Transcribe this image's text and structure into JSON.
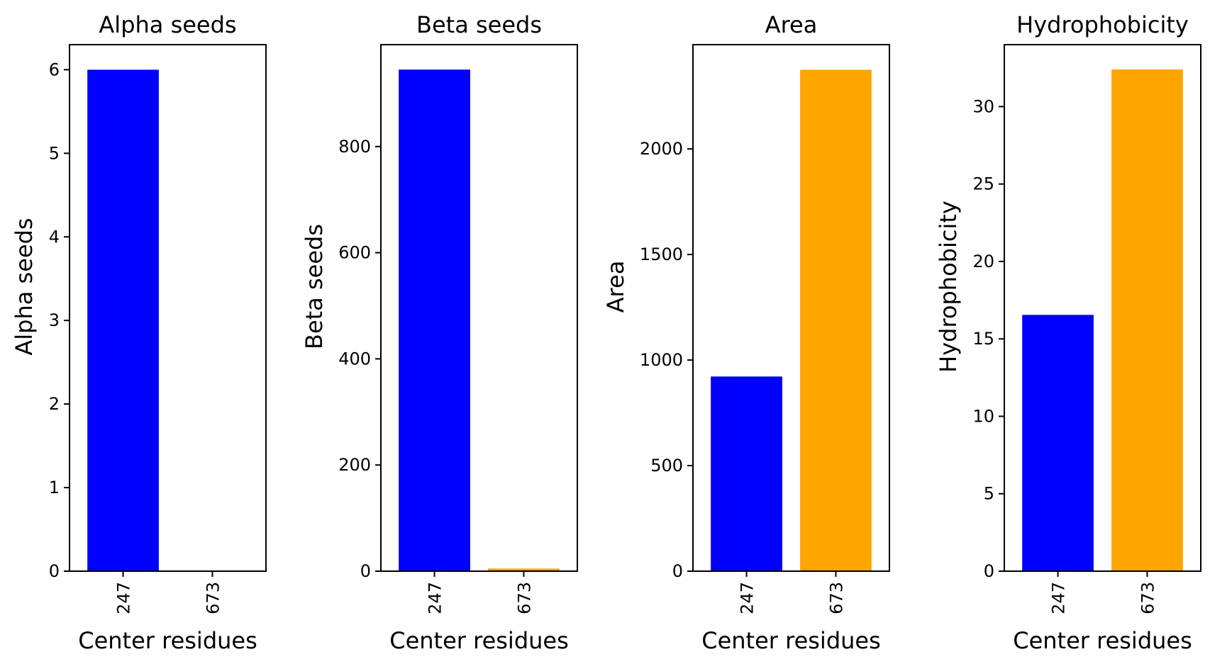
{
  "chart_data": [
    {
      "type": "bar",
      "title": "Alpha seeds",
      "xlabel": "Center residues",
      "ylabel": "Alpha seeds",
      "categories": [
        "247",
        "673"
      ],
      "values": [
        6,
        0
      ],
      "colors": [
        "#0000ff",
        "#ffa500"
      ],
      "ylim": [
        0,
        6.3
      ],
      "yticks": [
        0,
        1,
        2,
        3,
        4,
        5,
        6
      ],
      "ytick_labels": [
        "0",
        "1",
        "2",
        "3",
        "4",
        "5",
        "6"
      ],
      "grid": false
    },
    {
      "type": "bar",
      "title": "Beta seeds",
      "xlabel": "Center residues",
      "ylabel": "Beta seeds",
      "categories": [
        "247",
        "673"
      ],
      "values": [
        945,
        5
      ],
      "colors": [
        "#0000ff",
        "#ffa500"
      ],
      "ylim": [
        0,
        992
      ],
      "yticks": [
        0,
        200,
        400,
        600,
        800
      ],
      "ytick_labels": [
        "0",
        "200",
        "400",
        "600",
        "800"
      ],
      "grid": false
    },
    {
      "type": "bar",
      "title": "Area",
      "xlabel": "Center residues",
      "ylabel": "Area",
      "categories": [
        "247",
        "673"
      ],
      "values": [
        922,
        2375
      ],
      "colors": [
        "#0000ff",
        "#ffa500"
      ],
      "ylim": [
        0,
        2494
      ],
      "yticks": [
        0,
        500,
        1000,
        1500,
        2000
      ],
      "ytick_labels": [
        "0",
        "500",
        "1000",
        "1500",
        "2000"
      ],
      "grid": false
    },
    {
      "type": "bar",
      "title": "Hydrophobicity",
      "xlabel": "Center residues",
      "ylabel": "Hydrophobicity",
      "categories": [
        "247",
        "673"
      ],
      "values": [
        16.55,
        32.4
      ],
      "colors": [
        "#0000ff",
        "#ffa500"
      ],
      "ylim": [
        0,
        34.0
      ],
      "yticks": [
        0,
        5,
        10,
        15,
        20,
        25,
        30
      ],
      "ytick_labels": [
        "0",
        "5",
        "10",
        "15",
        "20",
        "25",
        "30"
      ],
      "grid": false
    }
  ]
}
